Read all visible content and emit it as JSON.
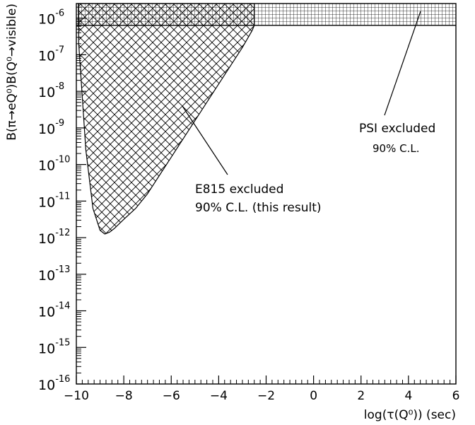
{
  "chart_data": {
    "type": "area",
    "xlabel": "log(τ(Q⁰)) (sec)",
    "ylabel": "B(π→eQ⁰)B(Q⁰→visible)",
    "xlim": [
      -10,
      6
    ],
    "ylim_log10": [
      -16,
      -5.6
    ],
    "y_scale": "log",
    "x_ticks": [
      -10,
      -8,
      -6,
      -4,
      -2,
      0,
      2,
      4,
      6
    ],
    "x_tick_labels": [
      "−10",
      "−8",
      "−6",
      "−4",
      "−2",
      "0",
      "2",
      "4",
      "6"
    ],
    "y_ticks_exp": [
      -16,
      -15,
      -14,
      -13,
      -12,
      -11,
      -10,
      -9,
      -8,
      -7,
      -6
    ],
    "y_tick_base": "10",
    "y_tick_exps": [
      "-16",
      "-15",
      "-14",
      "-13",
      "-12",
      "-11",
      "-10",
      "-9",
      "-8",
      "-7",
      "-6"
    ],
    "regions": [
      {
        "hatch": "crosshatch-diagonal",
        "label_lines": [
          "E815 excluded",
          "90% C.L. (this result)"
        ],
        "boundary": {
          "x": [
            -9.9,
            -9.6,
            -9.3,
            -9.0,
            -8.8,
            -8.6,
            -8.4,
            -8.0,
            -7.5,
            -7.0,
            -6.5,
            -6.0,
            -5.5,
            -5.0,
            -4.5,
            -4.0,
            -3.5,
            -3.0,
            -2.6,
            -2.5
          ],
          "log10_y": [
            -6.7,
            -9.6,
            -11.2,
            -11.8,
            -11.9,
            -11.85,
            -11.75,
            -11.5,
            -11.2,
            -10.8,
            -10.3,
            -9.8,
            -9.3,
            -8.8,
            -8.3,
            -7.8,
            -7.3,
            -6.8,
            -6.35,
            -6.2
          ]
        },
        "upper_log10_y": -5.6
      },
      {
        "hatch": "grid",
        "label_lines": [
          "PSI excluded",
          "90% C.L."
        ],
        "x_range": [
          -10,
          6
        ],
        "log10_y_range": [
          -6.2,
          -5.6
        ]
      }
    ]
  }
}
